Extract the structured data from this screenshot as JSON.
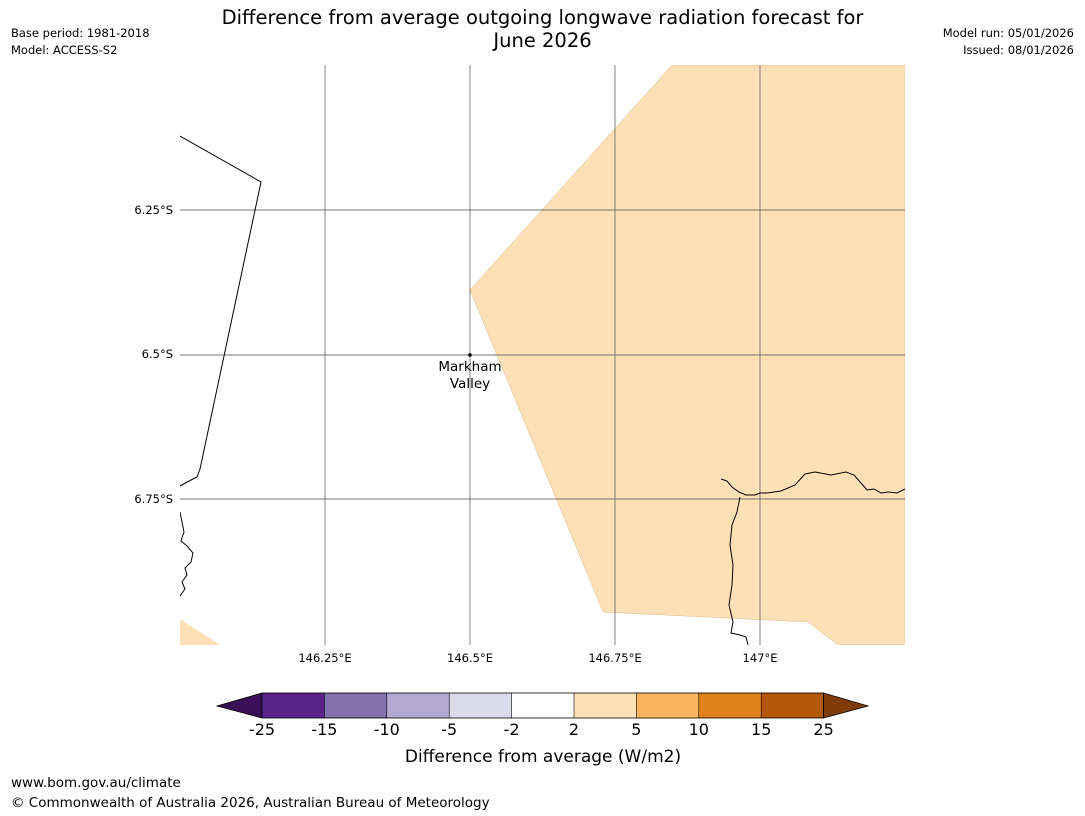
{
  "title_line1": "Difference from average outgoing longwave radiation forecast for",
  "title_line2": "June 2026",
  "base_period": "Base period: 1981-2018",
  "model": "Model: ACCESS-S2",
  "model_run": "Model run: 05/01/2026",
  "issued": "Issued: 08/01/2026",
  "map": {
    "lat_labels": [
      "6.25°S",
      "6.5°S",
      "6.75°S"
    ],
    "lon_labels": [
      "146.25°E",
      "146.5°E",
      "146.75°E",
      "147°E"
    ],
    "place_name_line1": "Markham",
    "place_name_line2": "Valley",
    "anomaly_fill_color": "#fde0b6",
    "extent": {
      "lon_min": 146.0,
      "lon_max": 147.25,
      "lat_min": -7.0,
      "lat_max": -6.0
    }
  },
  "colorbar": {
    "ticks": [
      "-25",
      "-15",
      "-10",
      "-5",
      "-2",
      "2",
      "5",
      "10",
      "15",
      "25"
    ],
    "colors": [
      "#3b0f58",
      "#59238a",
      "#8171ad",
      "#b2a9d2",
      "#dadaeb",
      "#ffffff",
      "#fde0b6",
      "#fbb55f",
      "#e1811a",
      "#b35806",
      "#7f3b08"
    ],
    "label": "Difference from average (W/m2)"
  },
  "footer_url": "www.bom.gov.au/climate",
  "footer_copyright": "© Commonwealth of Australia 2026, Australian Bureau of Meteorology"
}
